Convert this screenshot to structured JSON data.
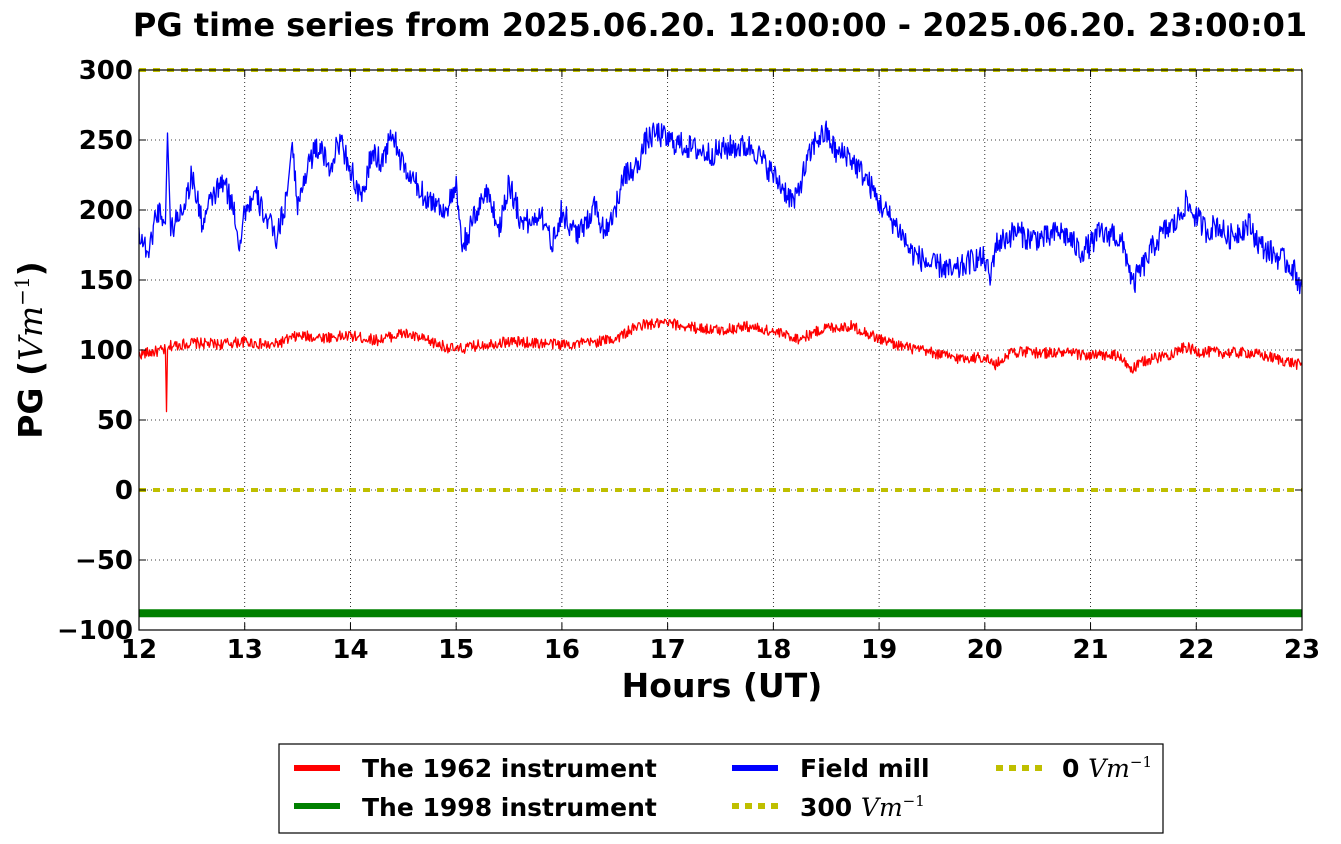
{
  "chart_data": {
    "type": "line",
    "title": "PG time series from 2025.06.20. 12:00:00 - 2025.06.20. 23:00:01",
    "xlabel": "Hours (UT)",
    "ylabel": {
      "prefix": "PG (",
      "unit": "Vm",
      "exponent": "−1",
      "suffix": ")"
    },
    "xlim": [
      12,
      23
    ],
    "ylim": [
      -100,
      300
    ],
    "x_ticks": [
      12,
      13,
      14,
      15,
      16,
      17,
      18,
      19,
      20,
      21,
      22,
      23
    ],
    "y_ticks": [
      -100,
      -50,
      0,
      50,
      100,
      150,
      200,
      250,
      300
    ],
    "x_tick_labels": [
      "12",
      "13",
      "14",
      "15",
      "16",
      "17",
      "18",
      "19",
      "20",
      "21",
      "22",
      "23"
    ],
    "y_tick_labels": [
      "−100",
      "−50",
      "0",
      "50",
      "100",
      "150",
      "200",
      "250",
      "300"
    ],
    "grid": true,
    "legend_position": "bottom, below the axes",
    "series": [
      {
        "name": "The 1962 instrument",
        "color": "#ff0000",
        "style": "solid",
        "x": [
          12.0,
          12.25,
          12.26,
          12.27,
          12.3,
          12.5,
          12.75,
          13.0,
          13.25,
          13.5,
          13.75,
          14.0,
          14.25,
          14.5,
          14.75,
          15.0,
          15.25,
          15.5,
          15.75,
          16.0,
          16.25,
          16.5,
          16.75,
          17.0,
          17.25,
          17.5,
          17.75,
          18.0,
          18.25,
          18.5,
          18.75,
          19.0,
          19.25,
          19.5,
          19.75,
          20.0,
          20.1,
          20.25,
          20.5,
          20.75,
          21.0,
          21.25,
          21.4,
          21.5,
          21.75,
          21.9,
          22.0,
          22.25,
          22.5,
          22.75,
          23.0
        ],
        "y": [
          97,
          100,
          56,
          99,
          103,
          105,
          104,
          106,
          103,
          110,
          109,
          110,
          107,
          112,
          106,
          100,
          104,
          106,
          105,
          104,
          105,
          108,
          118,
          119,
          116,
          114,
          117,
          113,
          108,
          116,
          117,
          108,
          102,
          98,
          94,
          95,
          89,
          99,
          98,
          98,
          96,
          96,
          86,
          92,
          97,
          102,
          99,
          98,
          98,
          94,
          89
        ]
      },
      {
        "name": "Field mill",
        "color": "#0000ff",
        "style": "solid",
        "x": [
          12.0,
          12.05,
          12.1,
          12.15,
          12.2,
          12.25,
          12.27,
          12.3,
          12.4,
          12.45,
          12.5,
          12.6,
          12.7,
          12.8,
          12.9,
          12.95,
          13.0,
          13.1,
          13.2,
          13.3,
          13.35,
          13.4,
          13.45,
          13.5,
          13.6,
          13.7,
          13.8,
          13.9,
          14.0,
          14.1,
          14.2,
          14.3,
          14.4,
          14.5,
          14.6,
          14.7,
          14.8,
          14.9,
          15.0,
          15.05,
          15.1,
          15.2,
          15.3,
          15.4,
          15.5,
          15.6,
          15.7,
          15.8,
          15.9,
          16.0,
          16.1,
          16.2,
          16.3,
          16.4,
          16.5,
          16.6,
          16.7,
          16.8,
          16.9,
          17.0,
          17.2,
          17.4,
          17.6,
          17.8,
          17.9,
          18.0,
          18.1,
          18.2,
          18.3,
          18.4,
          18.5,
          18.6,
          18.7,
          18.8,
          18.9,
          19.0,
          19.1,
          19.2,
          19.3,
          19.4,
          19.5,
          19.6,
          19.7,
          19.8,
          19.9,
          20.0,
          20.05,
          20.1,
          20.2,
          20.3,
          20.4,
          20.5,
          20.6,
          20.7,
          20.8,
          20.9,
          21.0,
          21.1,
          21.15,
          21.2,
          21.3,
          21.35,
          21.4,
          21.45,
          21.5,
          21.6,
          21.7,
          21.8,
          21.9,
          22.0,
          22.1,
          22.2,
          22.3,
          22.4,
          22.5,
          22.6,
          22.7,
          22.8,
          22.9,
          23.0
        ],
        "y": [
          185,
          175,
          170,
          195,
          200,
          190,
          255,
          185,
          200,
          210,
          225,
          190,
          210,
          220,
          200,
          175,
          200,
          210,
          195,
          180,
          195,
          210,
          250,
          200,
          235,
          245,
          230,
          250,
          230,
          205,
          240,
          235,
          255,
          230,
          220,
          210,
          205,
          200,
          215,
          175,
          180,
          200,
          215,
          185,
          220,
          195,
          190,
          200,
          175,
          200,
          185,
          185,
          205,
          185,
          200,
          225,
          230,
          250,
          255,
          250,
          245,
          240,
          245,
          245,
          235,
          225,
          215,
          205,
          230,
          250,
          255,
          240,
          240,
          230,
          220,
          205,
          195,
          185,
          170,
          165,
          160,
          160,
          155,
          160,
          165,
          165,
          150,
          175,
          180,
          185,
          180,
          180,
          180,
          185,
          180,
          170,
          175,
          185,
          180,
          185,
          175,
          165,
          145,
          155,
          160,
          175,
          185,
          190,
          205,
          195,
          185,
          190,
          180,
          185,
          190,
          175,
          170,
          165,
          160,
          145
        ]
      },
      {
        "name": "The 1998 instrument",
        "color": "#008000",
        "style": "solid-thick",
        "x": [
          12,
          23
        ],
        "y": [
          -88,
          -88
        ]
      },
      {
        "name": "300 Vm−1",
        "color": "#bfbf00",
        "style": "dotted",
        "x": [
          12,
          23
        ],
        "y": [
          300,
          300
        ]
      },
      {
        "name": "0 Vm−1",
        "color": "#bfbf00",
        "style": "dotted",
        "x": [
          12,
          23
        ],
        "y": [
          0,
          0
        ]
      }
    ],
    "legend": [
      {
        "label": "The 1962 instrument",
        "series": "The 1962 instrument",
        "color": "#ff0000",
        "style": "solid"
      },
      {
        "label": "The 1998 instrument",
        "series": "The 1998 instrument",
        "color": "#008000",
        "style": "solid"
      },
      {
        "label": "Field mill",
        "series": "Field mill",
        "color": "#0000ff",
        "style": "solid"
      },
      {
        "label_number": "300",
        "label_unit": "Vm",
        "label_exp": "−1",
        "series": "300 Vm−1",
        "color": "#bfbf00",
        "style": "dotted"
      },
      {
        "label_number": "0",
        "label_unit": "Vm",
        "label_exp": "−1",
        "series": "0 Vm−1",
        "color": "#bfbf00",
        "style": "dotted"
      }
    ]
  }
}
